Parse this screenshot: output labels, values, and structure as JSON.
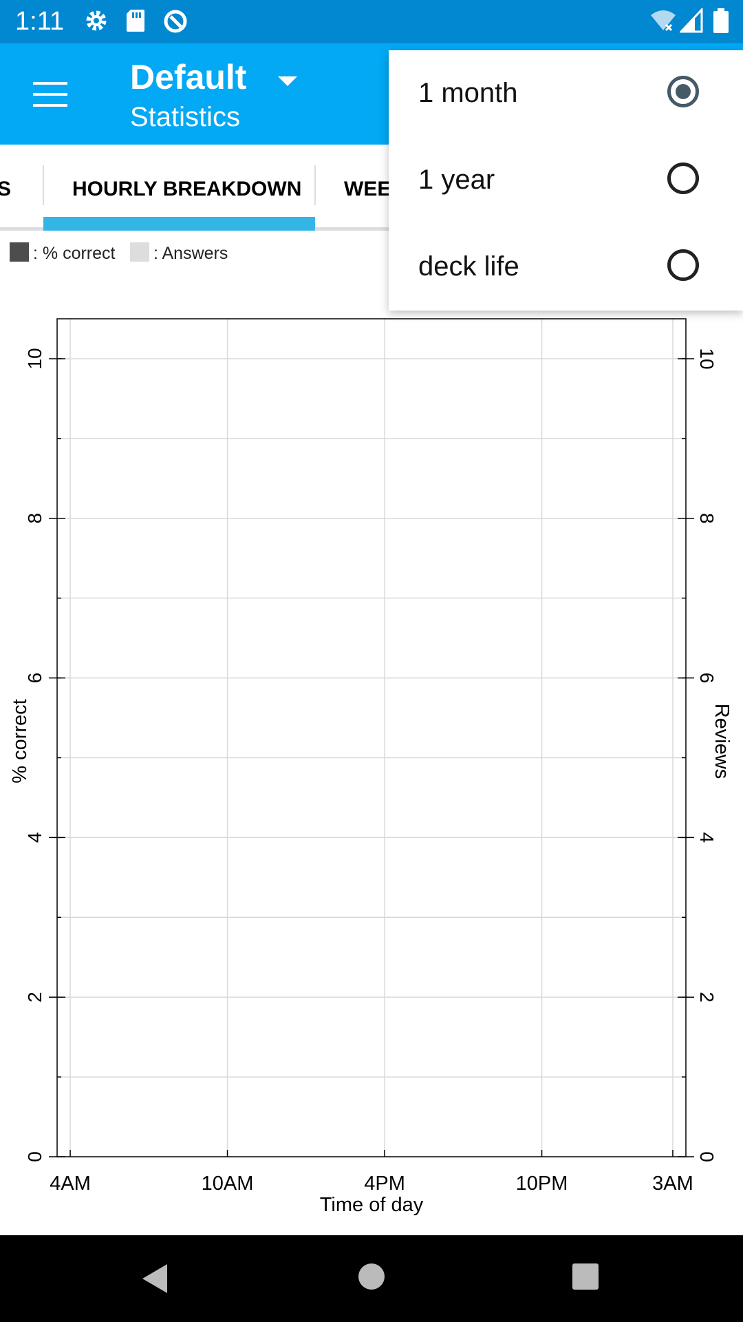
{
  "status_bar": {
    "time": "1:11",
    "icons": [
      "gear-icon",
      "sd-card-icon",
      "sync-icon",
      "wifi-off-icon",
      "signal-icon",
      "battery-icon"
    ]
  },
  "app_bar": {
    "menu_icon": "hamburger-icon",
    "title": "Default",
    "subtitle": "Statistics",
    "dropdown_icon": "caret-down-icon"
  },
  "tabs": [
    {
      "label": "S"
    },
    {
      "label": "HOURLY BREAKDOWN",
      "selected": true
    },
    {
      "label": "WEEK"
    }
  ],
  "legend": [
    {
      "color": "#4d4d4d",
      "label": ": % correct"
    },
    {
      "color": "#dddddd",
      "label": ": Answers"
    }
  ],
  "period_menu": {
    "items": [
      {
        "label": "1 month",
        "checked": true
      },
      {
        "label": "1 year",
        "checked": false
      },
      {
        "label": "deck life",
        "checked": false
      }
    ]
  },
  "chart_data": {
    "type": "bar",
    "x_label": "Time of day",
    "y_label_left": "% correct",
    "y_label_right": "Reviews",
    "x_ticks": [
      "4AM",
      "10AM",
      "4PM",
      "10PM",
      "3AM"
    ],
    "x_tick_hours": [
      4,
      10,
      16,
      22,
      27
    ],
    "x_range": [
      3.5,
      27.5
    ],
    "y_ticks": [
      0,
      2,
      4,
      6,
      8,
      10
    ],
    "y_range": [
      0,
      10.5
    ],
    "grid": true,
    "series": [
      {
        "name": "% correct",
        "values": []
      },
      {
        "name": "Answers",
        "values": []
      }
    ]
  },
  "nav_bar": {
    "back_icon": "back-triangle-icon",
    "home_icon": "home-circle-icon",
    "recents_icon": "recents-square-icon"
  }
}
